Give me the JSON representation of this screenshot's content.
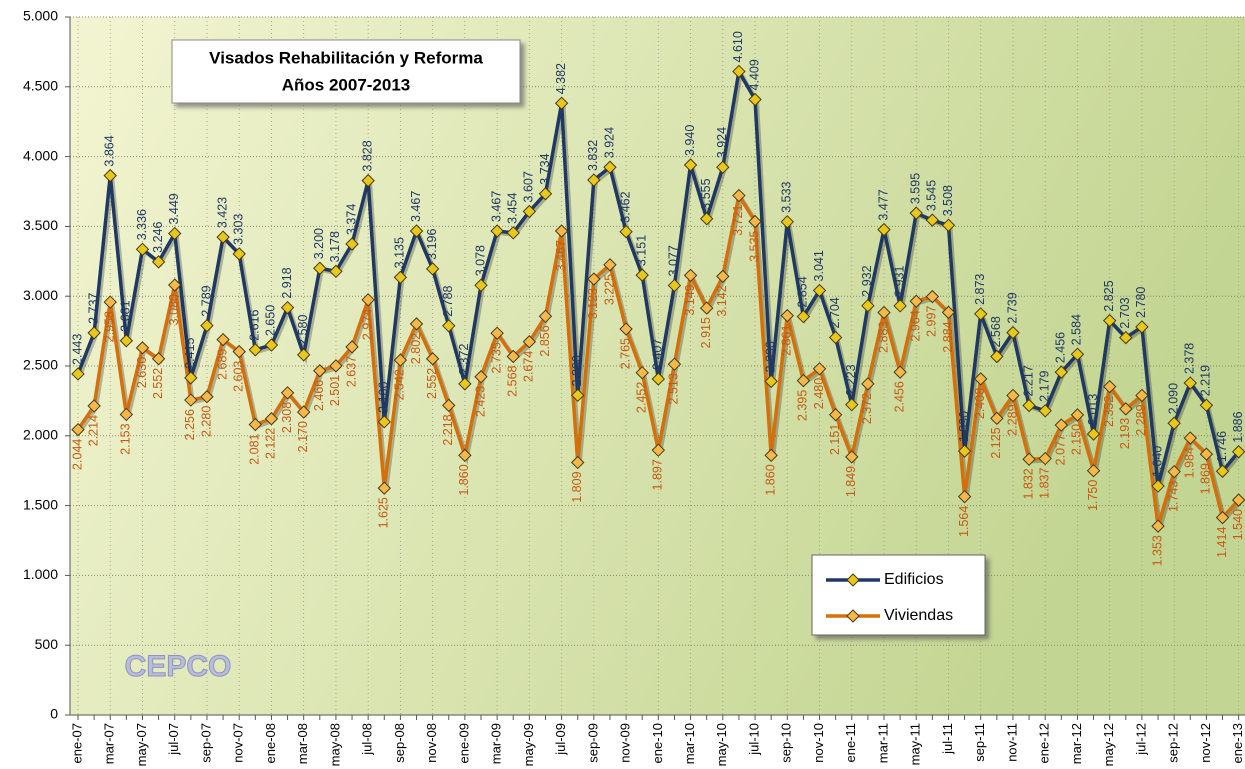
{
  "chart_data": {
    "type": "line",
    "title": "Visados Rehabilitación y Reforma",
    "subtitle": "Años 2007-2013",
    "logo": "CEPCO",
    "categories": [
      "ene-07",
      null,
      "mar-07",
      null,
      "may-07",
      null,
      "jul-07",
      null,
      "sep-07",
      null,
      "nov-07",
      null,
      "ene-08",
      null,
      "mar-08",
      null,
      "may-08",
      null,
      "jul-08",
      null,
      "sep-08",
      null,
      "nov-08",
      null,
      "ene-09",
      null,
      "mar-09",
      null,
      "may-09",
      null,
      "jul-09",
      null,
      "sep-09",
      null,
      "nov-09",
      null,
      "ene-10",
      null,
      "mar-10",
      null,
      "may-10",
      null,
      "jul-10",
      null,
      "sep-10",
      null,
      "nov-10",
      null,
      "ene-11",
      null,
      "mar-11",
      null,
      "may-11",
      null,
      "jul-11",
      null,
      "sep-11",
      null,
      "nov-11",
      null,
      "ene-12",
      null,
      "mar-12",
      null,
      "may-12",
      null,
      "jul-12",
      null,
      "sep-12",
      null,
      "nov-12",
      null,
      "ene-13"
    ],
    "series": [
      {
        "name": "Edificios",
        "color": "#1f3864",
        "marker_color": "#e8c81a",
        "label_color": "#1f3864",
        "values": [
          2443,
          2737,
          3864,
          2681,
          3336,
          3246,
          3449,
          2415,
          2789,
          3423,
          3303,
          2616,
          2650,
          2918,
          2580,
          3200,
          3178,
          3374,
          3828,
          2100,
          3135,
          3467,
          3196,
          2788,
          2372,
          3078,
          3467,
          3454,
          3607,
          3734,
          4382,
          2290,
          3832,
          3924,
          3462,
          3151,
          2407,
          3077,
          3940,
          3555,
          3924,
          4610,
          4409,
          2390,
          3533,
          2854,
          3041,
          2704,
          2223,
          2932,
          3477,
          2931,
          3595,
          3545,
          3508,
          1890,
          2873,
          2568,
          2739,
          2217,
          2179,
          2456,
          2584,
          2013,
          2825,
          2703,
          2780,
          1640,
          2090,
          2378,
          2219,
          1746,
          1886
        ],
        "value_labels": [
          "2.443",
          "2.737",
          "3.864",
          "2.681",
          "3.336",
          "3.246",
          "3.449",
          "2.415",
          "2.789",
          "3.423",
          "3.303",
          "2.616",
          "2.650",
          "2.918",
          "2.580",
          "3.200",
          "3.178",
          "3.374",
          "3.828",
          "2.100",
          "3.135",
          "3.467",
          "3.196",
          "2.788",
          "2.372",
          "3.078",
          "3.467",
          "3.454",
          "3.607",
          "3.734",
          "4.382",
          "2.290",
          "3.832",
          "3.924",
          "3.462",
          "3.151",
          "2.407",
          "3.077",
          "3.940",
          "3.555",
          "3.924",
          "4.610",
          "4.409",
          "2.390",
          "3.533",
          "2.854",
          "3.041",
          "2.704",
          "2.223",
          "2.932",
          "3.477",
          "2.931",
          "3.595",
          "3.545",
          "3.508",
          "1.890",
          "2.873",
          "2.568",
          "2.739",
          "2.217",
          "2.179",
          "2.456",
          "2.584",
          "2.013",
          "2.825",
          "2.703",
          "2.780",
          "1.640",
          "2.090",
          "2.378",
          "2.219",
          "1.746",
          "1.886"
        ]
      },
      {
        "name": "Viviendas",
        "color": "#d46f0a",
        "marker_color": "#f5b84a",
        "label_color": "#c55a11",
        "values": [
          2044,
          2214,
          2958,
          2153,
          2630,
          2552,
          3080,
          2256,
          2280,
          2689,
          2603,
          2081,
          2122,
          2308,
          2170,
          2466,
          2501,
          2637,
          2974,
          1625,
          2542,
          2802,
          2552,
          2218,
          1860,
          2423,
          2735,
          2568,
          2674,
          2856,
          3467,
          1809,
          3123,
          3225,
          2765,
          2452,
          1897,
          2513,
          3149,
          2915,
          3142,
          3721,
          3535,
          1860,
          2861,
          2395,
          2480,
          2151,
          1849,
          2372,
          2883,
          2456,
          2964,
          2997,
          2884,
          1564,
          2408,
          2125,
          2289,
          1832,
          1837,
          2077,
          2150,
          1750,
          2352,
          2193,
          2289,
          1353,
          1743,
          1984,
          1869,
          1414,
          1540
        ],
        "value_labels": [
          "2.044",
          "2.214",
          "2.958",
          "2.153",
          "2.630",
          "2.552",
          "3.080",
          "2.256",
          "2.280",
          "2.689",
          "2.603",
          "2.081",
          "2.122",
          "2.308",
          "2.170",
          "2.466",
          "2.501",
          "2.637",
          "2.974",
          "1.625",
          "2.542",
          "2.802",
          "2.552",
          "2.218",
          "1.860",
          "2.423",
          "2.735",
          "2.568",
          "2.674",
          "2.856",
          "3.467",
          "1.809",
          "3.123",
          "3.225",
          "2.765",
          "2.452",
          "1.897",
          "2.513",
          "3.149",
          "2.915",
          "3.142",
          "3.721",
          "3.535",
          "1.860",
          "2.861",
          "2.395",
          "2.480",
          "2.151",
          "1.849",
          "2.372",
          "2.883",
          "2.456",
          "2.964",
          "2.997",
          "2.884",
          "1.564",
          "2.408",
          "2.125",
          "2.289",
          "1.832",
          "1.837",
          "2.077",
          "2.150",
          "1.750",
          "2.352",
          "2.193",
          "2.289",
          "1.353",
          "1.743",
          "1.984",
          "1.869",
          "1.414",
          "1.540"
        ]
      }
    ],
    "ylim": [
      0,
      5000
    ],
    "yticks": [
      0,
      500,
      {
        "value": 1000,
        "label": "1.000"
      },
      {
        "value": 1500,
        "label": "1.500"
      },
      {
        "value": 2000,
        "label": "2.000"
      },
      {
        "value": 2500,
        "label": "2.500"
      },
      {
        "value": 3000,
        "label": "3.000"
      },
      {
        "value": 3500,
        "label": "3.500"
      },
      {
        "value": 4000,
        "label": "4.000"
      },
      {
        "value": 4500,
        "label": "4.500"
      },
      {
        "value": 5000,
        "label": "5.000"
      }
    ],
    "grid": true,
    "legend": "lower-right"
  }
}
